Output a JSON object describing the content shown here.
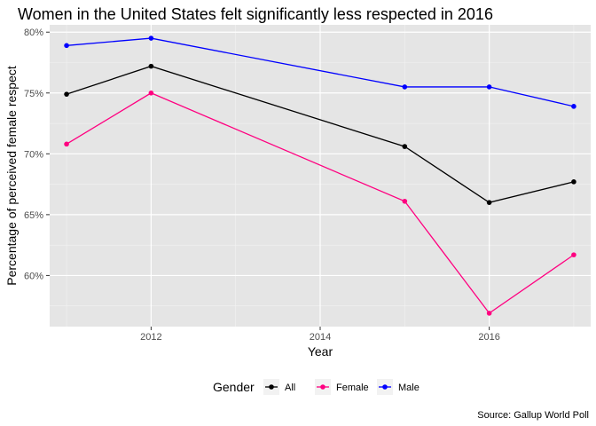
{
  "chart_data": {
    "type": "line",
    "title": "Women in the United States felt significantly less respected in 2016",
    "xlabel": "Year",
    "ylabel": "Percentage of perceived female respect",
    "caption": "Source: Gallup World Poll",
    "x": [
      2011,
      2012,
      2015,
      2016,
      2017
    ],
    "xlim": [
      2010.8,
      2017.2
    ],
    "ylim": [
      0.558,
      0.806
    ],
    "x_ticks": [
      2012,
      2014,
      2016
    ],
    "x_tick_labels": [
      "2012",
      "2014",
      "2016"
    ],
    "y_ticks": [
      0.6,
      0.65,
      0.7,
      0.75,
      0.8
    ],
    "y_tick_labels": [
      "60%",
      "65%",
      "70%",
      "75%",
      "80%"
    ],
    "grid": true,
    "legend": {
      "title": "Gender",
      "position": "bottom",
      "labels": [
        "All",
        "Female",
        "Male"
      ]
    },
    "series": [
      {
        "name": "All",
        "color": "#000000",
        "values": [
          0.749,
          0.772,
          0.706,
          0.66,
          0.677
        ]
      },
      {
        "name": "Female",
        "color": "#ff0080",
        "values": [
          0.708,
          0.75,
          0.661,
          0.569,
          0.617
        ]
      },
      {
        "name": "Male",
        "color": "#0000ff",
        "values": [
          0.789,
          0.795,
          0.755,
          0.755,
          0.739
        ]
      }
    ]
  }
}
